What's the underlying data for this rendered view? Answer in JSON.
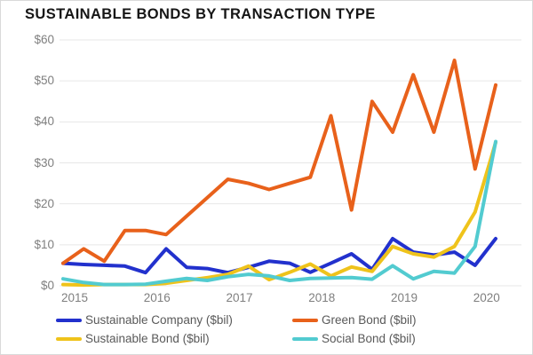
{
  "title": "SUSTAINABLE BONDS BY TRANSACTION TYPE",
  "chart_data": {
    "type": "line",
    "x_unit": "quarterly",
    "categories": [
      "2015 Q1",
      "2015 Q2",
      "2015 Q3",
      "2015 Q4",
      "2016 Q1",
      "2016 Q2",
      "2016 Q3",
      "2016 Q4",
      "2017 Q1",
      "2017 Q2",
      "2017 Q3",
      "2017 Q4",
      "2018 Q1",
      "2018 Q2",
      "2018 Q3",
      "2018 Q4",
      "2019 Q1",
      "2019 Q2",
      "2019 Q3",
      "2019 Q4",
      "2020 Q1",
      "2020 Q2"
    ],
    "x_axis_labels": [
      "2015",
      "2016",
      "2017",
      "2018",
      "2019",
      "2020"
    ],
    "series": [
      {
        "name": "Sustainable Company ($bil)",
        "color": "#2231cd",
        "values": [
          5.5,
          5.2,
          5.0,
          4.8,
          3.2,
          9.0,
          4.5,
          4.2,
          3.2,
          4.5,
          6.0,
          5.5,
          3.3,
          5.5,
          7.8,
          4.0,
          11.5,
          8.2,
          7.5,
          8.2,
          5.0,
          11.5
        ]
      },
      {
        "name": "Green Bond ($bil)",
        "color": "#e8611b",
        "values": [
          5.5,
          9.0,
          6.0,
          13.5,
          13.5,
          12.5,
          17.0,
          21.5,
          26.0,
          25.0,
          23.5,
          25.0,
          26.5,
          41.5,
          18.5,
          45.0,
          37.5,
          51.5,
          37.5,
          55.0,
          28.5,
          49.0
        ]
      },
      {
        "name": "Sustainable Bond ($bil)",
        "color": "#efc31b",
        "values": [
          0.3,
          0.2,
          0.3,
          0.3,
          0.3,
          0.6,
          1.3,
          2.0,
          2.8,
          4.8,
          1.5,
          3.3,
          5.3,
          2.4,
          4.6,
          3.5,
          9.6,
          7.8,
          7.0,
          9.6,
          18.0,
          35.0
        ]
      },
      {
        "name": "Social Bond ($bil)",
        "color": "#52cbd0",
        "values": [
          1.7,
          0.8,
          0.3,
          0.3,
          0.4,
          1.1,
          1.8,
          1.3,
          2.2,
          2.8,
          2.4,
          1.3,
          1.8,
          1.9,
          2.0,
          1.6,
          4.9,
          1.7,
          3.5,
          3.1,
          9.6,
          35.2
        ]
      }
    ],
    "ylim": [
      0,
      60
    ],
    "y_tick_step": 10,
    "y_tick_labels": [
      "$0",
      "$10",
      "$20",
      "$30",
      "$40",
      "$50",
      "$60"
    ],
    "grid": true,
    "gridline_color": "#e7e7e7",
    "legend_position": "bottom"
  }
}
